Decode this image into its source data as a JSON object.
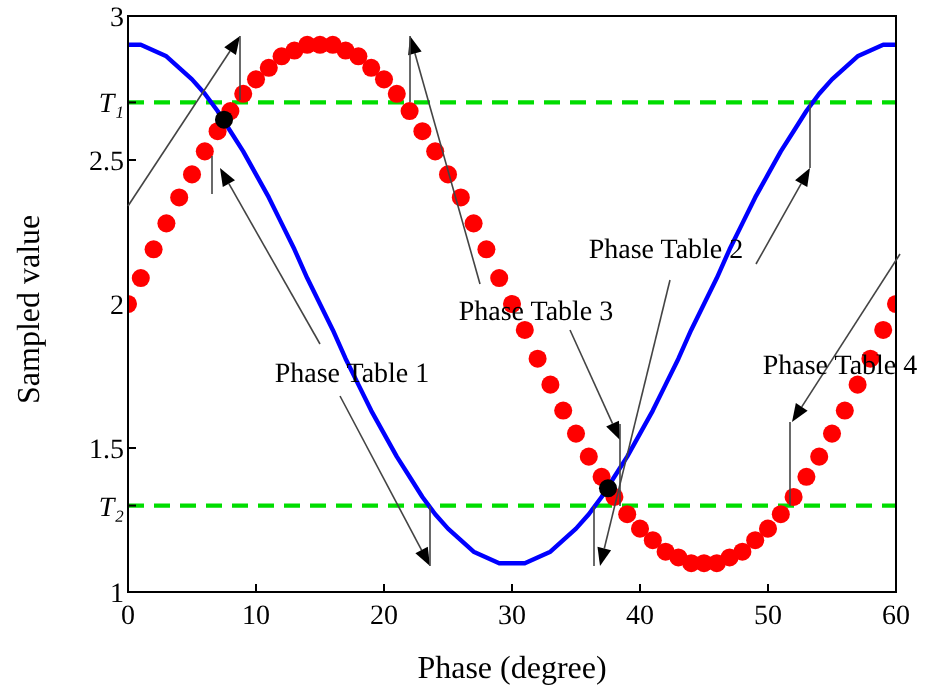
{
  "chart_data": {
    "type": "line",
    "xlabel": "Phase (degree)",
    "ylabel": "Sampled value",
    "xlim": [
      0,
      60
    ],
    "xticks": [
      0,
      10,
      20,
      30,
      40,
      50,
      60
    ],
    "ylim": [
      1,
      3
    ],
    "yticks": [
      1,
      {
        "value": 1.3,
        "label": "T₂"
      },
      1.5,
      2,
      2.5,
      {
        "value": 2.7,
        "label": "T₁"
      },
      3
    ],
    "x": [
      0,
      1,
      2,
      3,
      4,
      5,
      6,
      7,
      8,
      9,
      10,
      11,
      12,
      13,
      14,
      15,
      16,
      17,
      18,
      19,
      20,
      21,
      22,
      23,
      24,
      25,
      26,
      27,
      28,
      29,
      30,
      31,
      32,
      33,
      34,
      35,
      36,
      37,
      38,
      39,
      40,
      41,
      42,
      43,
      44,
      45,
      46,
      47,
      48,
      49,
      50,
      51,
      52,
      53,
      54,
      55,
      56,
      57,
      58,
      59,
      60
    ],
    "series": [
      {
        "type": "scatter",
        "color": "#ff0000",
        "marker": "circle",
        "values": [
          2,
          2.09,
          2.19,
          2.28,
          2.37,
          2.45,
          2.53,
          2.6,
          2.67,
          2.73,
          2.78,
          2.82,
          2.86,
          2.88,
          2.9,
          2.9,
          2.9,
          2.88,
          2.86,
          2.82,
          2.78,
          2.73,
          2.67,
          2.6,
          2.53,
          2.45,
          2.37,
          2.28,
          2.19,
          2.09,
          2,
          1.91,
          1.81,
          1.72,
          1.63,
          1.55,
          1.47,
          1.4,
          1.33,
          1.27,
          1.22,
          1.18,
          1.14,
          1.12,
          1.1,
          1.1,
          1.1,
          1.12,
          1.14,
          1.18,
          1.22,
          1.27,
          1.33,
          1.4,
          1.47,
          1.55,
          1.63,
          1.72,
          1.81,
          1.91,
          2
        ]
      },
      {
        "color": "#0000ff",
        "marker": "none",
        "line_style": "solid",
        "values": [
          2.9,
          2.9,
          2.88,
          2.86,
          2.82,
          2.78,
          2.73,
          2.67,
          2.6,
          2.53,
          2.45,
          2.37,
          2.28,
          2.19,
          2.09,
          2,
          1.91,
          1.81,
          1.72,
          1.63,
          1.55,
          1.47,
          1.4,
          1.33,
          1.27,
          1.22,
          1.18,
          1.14,
          1.12,
          1.1,
          1.1,
          1.1,
          1.12,
          1.14,
          1.18,
          1.22,
          1.27,
          1.33,
          1.4,
          1.47,
          1.55,
          1.63,
          1.72,
          1.81,
          1.91,
          2,
          2.09,
          2.19,
          2.28,
          2.37,
          2.45,
          2.53,
          2.6,
          2.67,
          2.73,
          2.78,
          2.82,
          2.86,
          2.88,
          2.9,
          2.9
        ]
      },
      {
        "type": "scatter",
        "color": "#000000",
        "marker": "circle",
        "x": [
          7.5,
          37.5
        ],
        "values": [
          2.64,
          1.36
        ]
      }
    ],
    "ref_lines": [
      {
        "axis": "y",
        "value": 2.7,
        "color": "#00dd00",
        "line_style": "dashed"
      },
      {
        "axis": "y",
        "value": 1.3,
        "color": "#00dd00",
        "line_style": "dashed"
      }
    ],
    "annotations": [
      "Phase Table 1",
      "Phase Table 2",
      "Phase Table 3",
      "Phase Table 4"
    ],
    "grid": false,
    "legend": false
  }
}
